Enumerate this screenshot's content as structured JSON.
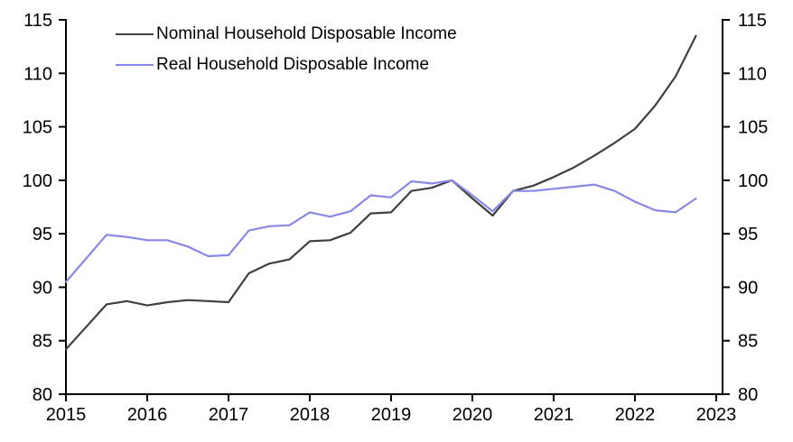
{
  "chart_data": {
    "type": "line",
    "title": "",
    "frequency": "quarterly",
    "grid": false,
    "background_color": "#ffffff",
    "axis_color": "#000000",
    "legend": {
      "position": "top-left"
    },
    "x_axis": {
      "ticks": [
        2015,
        2016,
        2017,
        2018,
        2019,
        2020,
        2021,
        2022,
        2023
      ],
      "tick_labels": [
        "2015",
        "2016",
        "2017",
        "2018",
        "2019",
        "2020",
        "2021",
        "2022",
        "2023"
      ],
      "range": [
        2015,
        2023.08
      ]
    },
    "y_axis": {
      "ticks": [
        80,
        85,
        90,
        95,
        100,
        105,
        110,
        115
      ],
      "tick_labels": [
        "80",
        "85",
        "90",
        "95",
        "100",
        "105",
        "110",
        "115"
      ],
      "range": [
        80,
        115
      ],
      "shown_left": true,
      "shown_right": true
    },
    "x": [
      2015.0,
      2015.25,
      2015.5,
      2015.75,
      2016.0,
      2016.25,
      2016.5,
      2016.75,
      2017.0,
      2017.25,
      2017.5,
      2017.75,
      2018.0,
      2018.25,
      2018.5,
      2018.75,
      2019.0,
      2019.25,
      2019.5,
      2019.75,
      2020.0,
      2020.25,
      2020.5,
      2020.75,
      2021.0,
      2021.25,
      2021.5,
      2021.75,
      2022.0,
      2022.25,
      2022.5,
      2022.75
    ],
    "series": [
      {
        "name": "Nominal Household Disposable Income",
        "color": "#404040",
        "line_width": 2.2,
        "values": [
          84.2,
          86.3,
          88.4,
          88.7,
          88.3,
          88.6,
          88.8,
          88.7,
          88.6,
          91.3,
          92.2,
          92.6,
          94.3,
          94.4,
          95.1,
          96.9,
          97.0,
          99.0,
          99.3,
          100.0,
          98.3,
          96.7,
          99.0,
          99.5,
          100.3,
          101.2,
          102.3,
          103.5,
          104.8,
          107.0,
          109.7,
          113.5
        ]
      },
      {
        "name": "Real Household Disposable Income",
        "color": "#8888e8",
        "line_width": 2.2,
        "values": [
          90.5,
          92.7,
          94.9,
          94.7,
          94.4,
          94.4,
          93.8,
          92.9,
          93.0,
          95.3,
          95.7,
          95.8,
          97.0,
          96.6,
          97.1,
          98.6,
          98.4,
          99.9,
          99.7,
          100.0,
          98.6,
          97.1,
          99.0,
          99.0,
          99.2,
          99.4,
          99.6,
          99.0,
          98.0,
          97.2,
          97.0,
          98.3
        ]
      }
    ]
  }
}
